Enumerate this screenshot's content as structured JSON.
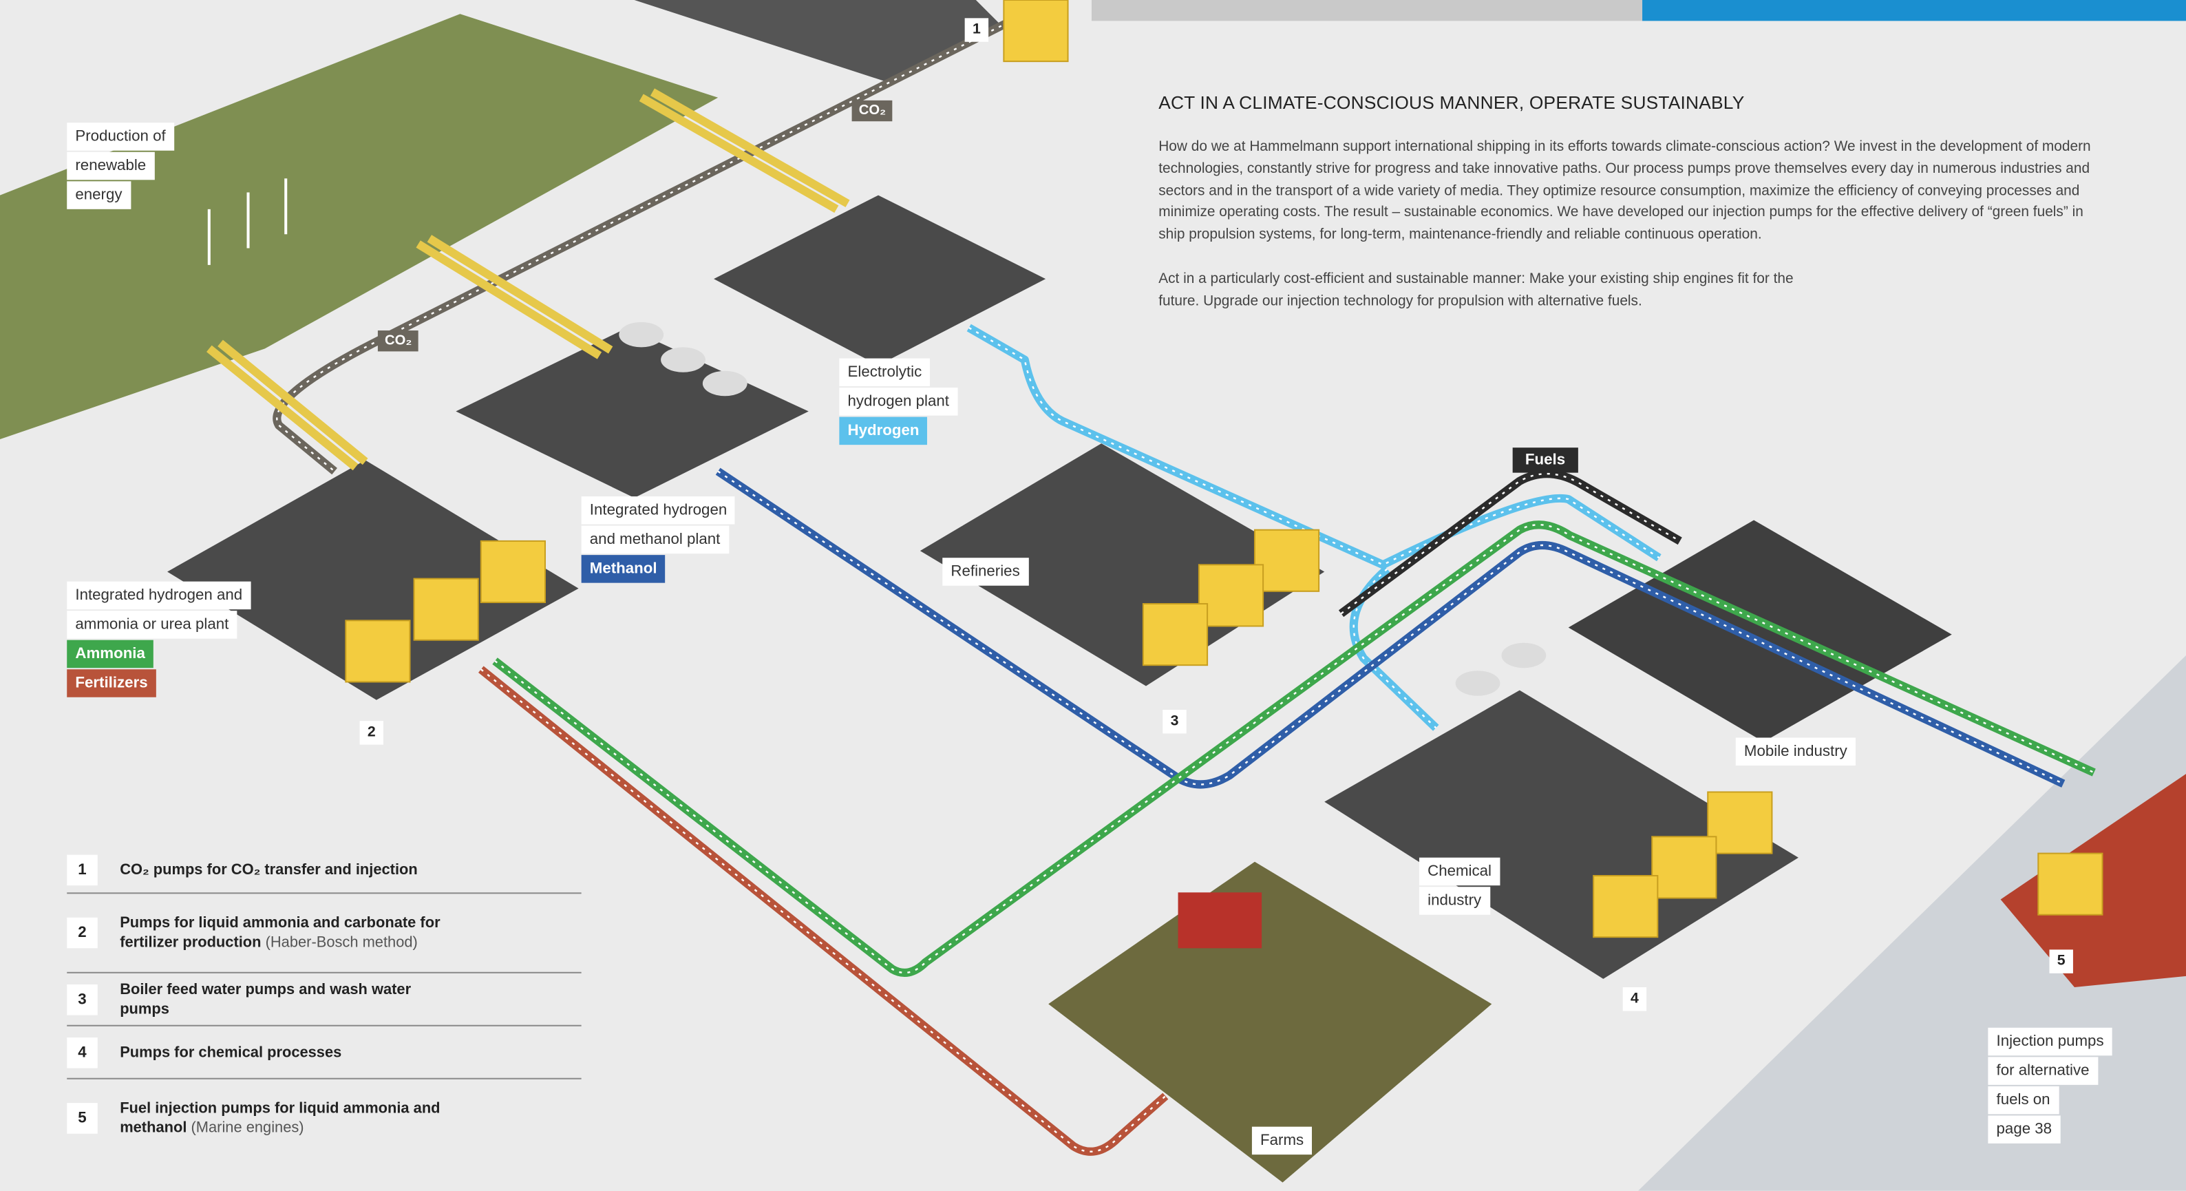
{
  "heading": "ACT IN A CLIMATE-CONSCIOUS MANNER, OPERATE SUSTAINABLY",
  "paragraphs": [
    "How do we at Hammelmann support international shipping in its efforts towards climate-conscious action? We invest in the development of modern technologies, constantly strive for progress and take innovative paths. Our process pumps prove themselves every day in numerous industries and sectors and in the transport of a wide variety of media. They optimize resource consumption, maximize the efficiency of conveying processes and minimize operating costs. The result – sustainable economics. We have developed our injection pumps for the effective delivery of “green fuels” in ship propulsion systems, for long-term, maintenance-friendly and reliable continuous operation.",
    "Act in a particularly cost-efficient and sustainable manner: Make your existing ship engines fit for the future. Upgrade our injection technology for propulsion with alternative fuels."
  ],
  "labels": [
    {
      "lines": [
        "Production of",
        "renewable",
        "energy"
      ]
    },
    {
      "lines": [
        "Electrolytic",
        "hydrogen plant"
      ],
      "tags": [
        {
          "text": "Hydrogen",
          "color": "#5cc1ec"
        }
      ]
    },
    {
      "lines": [
        "Integrated hydrogen",
        "and methanol plant"
      ],
      "tags": [
        {
          "text": "Methanol",
          "color": "#2f5ea8"
        }
      ]
    },
    {
      "lines": [
        "Integrated hydrogen and",
        "ammonia or urea plant"
      ],
      "tags": [
        {
          "text": "Ammonia",
          "color": "#3ea74c"
        },
        {
          "text": "Fertilizers",
          "color": "#b8533a"
        }
      ]
    },
    {
      "lines": [
        "Refineries"
      ]
    },
    {
      "lines": [
        "Chemical",
        "industry"
      ]
    },
    {
      "lines": [
        "Mobile industry"
      ]
    },
    {
      "lines": [
        "Farms"
      ]
    },
    {
      "lines": [
        "Injection pumps",
        "for alternative",
        "fuels on",
        "page 38"
      ]
    }
  ],
  "pipe_labels": [
    "CO₂",
    "CO₂",
    "Fuels"
  ],
  "markers": [
    "1",
    "2",
    "3",
    "4",
    "5"
  ],
  "legend": [
    {
      "number": "1",
      "text": "CO₂ pumps for CO₂ transfer and injection"
    },
    {
      "number": "2",
      "text": "Pumps for liquid ammonia and carbonate for fertilizer production",
      "note": "(Haber-Bosch method)"
    },
    {
      "number": "3",
      "text": "Boiler feed water pumps and wash water pumps"
    },
    {
      "number": "4",
      "text": "Pumps for chemical processes"
    },
    {
      "number": "5",
      "text": "Fuel injection pumps for liquid ammonia and methanol",
      "note": "(Marine engines)"
    }
  ]
}
